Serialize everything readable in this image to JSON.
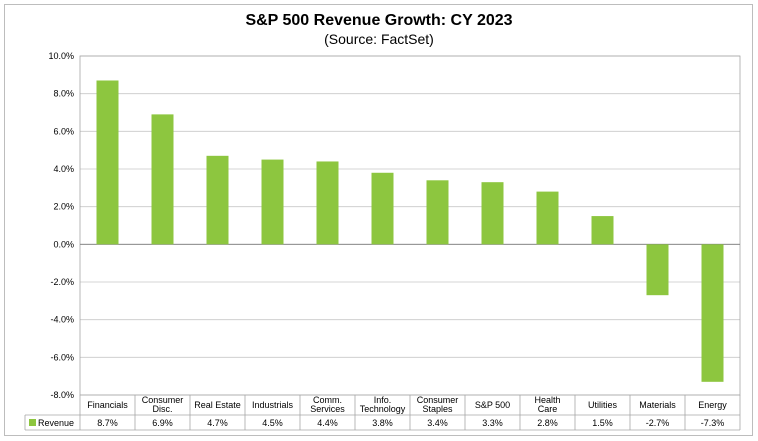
{
  "chart_data": {
    "type": "bar",
    "title": "S&P 500 Revenue Growth: CY 2023",
    "subtitle": "(Source: FactSet)",
    "categories": [
      [
        "Financials"
      ],
      [
        "Consumer",
        "Disc."
      ],
      [
        "Real Estate"
      ],
      [
        "Industrials"
      ],
      [
        "Comm.",
        "Services"
      ],
      [
        "Info.",
        "Technology"
      ],
      [
        "Consumer",
        "Staples"
      ],
      [
        "S&P 500"
      ],
      [
        "Health",
        "Care"
      ],
      [
        "Utilities"
      ],
      [
        "Materials"
      ],
      [
        "Energy"
      ]
    ],
    "series": [
      {
        "name": "Revenue",
        "values": [
          8.7,
          6.9,
          4.7,
          4.5,
          4.4,
          3.8,
          3.4,
          3.3,
          2.8,
          1.5,
          -2.7,
          -7.3
        ],
        "labels": [
          "8.7%",
          "6.9%",
          "4.7%",
          "4.5%",
          "4.4%",
          "3.8%",
          "3.4%",
          "3.3%",
          "2.8%",
          "1.5%",
          "-2.7%",
          "-7.3%"
        ],
        "color": "#8dc63f"
      }
    ],
    "yticks": [
      "10.0%",
      "8.0%",
      "6.0%",
      "4.0%",
      "2.0%",
      "0.0%",
      "-2.0%",
      "-4.0%",
      "-6.0%",
      "-8.0%"
    ],
    "ylim": [
      -8,
      10
    ],
    "grid": true,
    "legend": "data-table-left"
  }
}
